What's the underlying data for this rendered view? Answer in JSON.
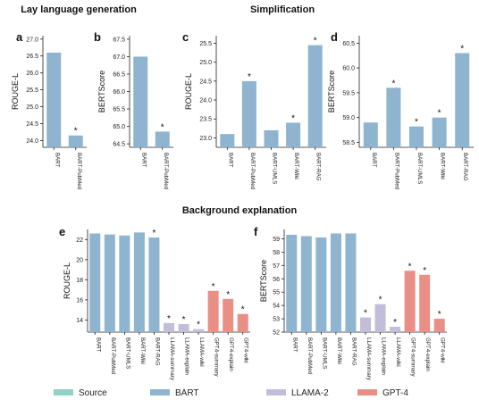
{
  "sections": {
    "lay": "Lay language generation",
    "simp": "Simplification",
    "bg": "Background explanation"
  },
  "colors": {
    "Source": "#8fd3c4",
    "BART": "#8fb4cf",
    "LLAMA-2": "#c2bdd9",
    "GPT-4": "#ea8f86"
  },
  "legend": [
    {
      "label": "Source",
      "color_key": "Source"
    },
    {
      "label": "BART",
      "color_key": "BART"
    },
    {
      "label": "LLAMA-2",
      "color_key": "LLAMA-2"
    },
    {
      "label": "GPT-4",
      "color_key": "GPT-4"
    }
  ],
  "chart_data": [
    {
      "panel": "a",
      "type": "bar",
      "ylabel": "ROUGE-L",
      "categories": [
        "BART",
        "BART-PubMed"
      ],
      "values": [
        26.6,
        24.15
      ],
      "star": [
        false,
        true
      ],
      "group": [
        "BART",
        "BART"
      ],
      "ylim": [
        23.8,
        27.1
      ],
      "yticks": [
        "24.0",
        "24.5",
        "25.0",
        "25.5",
        "26.0",
        "26.5",
        "27.0"
      ]
    },
    {
      "panel": "b",
      "type": "bar",
      "ylabel": "BERTScore",
      "categories": [
        "BART",
        "BART-PubMed"
      ],
      "values": [
        67.0,
        64.85
      ],
      "star": [
        false,
        true
      ],
      "group": [
        "BART",
        "BART"
      ],
      "ylim": [
        64.4,
        67.6
      ],
      "yticks": [
        "64.5",
        "65.0",
        "65.5",
        "66.0",
        "66.5",
        "67.0",
        "67.5"
      ]
    },
    {
      "panel": "c",
      "type": "bar",
      "ylabel": "ROUGE-L",
      "categories": [
        "BART",
        "BART-PubMed",
        "BART-UMLS",
        "BART-Wiki",
        "BART-RAG"
      ],
      "values": [
        23.1,
        24.5,
        23.2,
        23.4,
        25.45
      ],
      "star": [
        false,
        true,
        false,
        true,
        true
      ],
      "group": [
        "BART",
        "BART",
        "BART",
        "BART",
        "BART"
      ],
      "ylim": [
        22.75,
        25.7
      ],
      "yticks": [
        "23.0",
        "23.5",
        "24.0",
        "24.5",
        "25.0",
        "25.5"
      ]
    },
    {
      "panel": "d",
      "type": "bar",
      "ylabel": "BERTScore",
      "categories": [
        "BART",
        "BART-PubMed",
        "BART-UMLS",
        "BART-Wiki",
        "BART-RAG"
      ],
      "values": [
        58.9,
        59.6,
        58.82,
        59.0,
        60.3
      ],
      "star": [
        false,
        true,
        true,
        true,
        true
      ],
      "group": [
        "BART",
        "BART",
        "BART",
        "BART",
        "BART"
      ],
      "ylim": [
        58.4,
        60.65
      ],
      "yticks": [
        "58.5",
        "59.0",
        "59.5",
        "60.0",
        "60.5"
      ]
    },
    {
      "panel": "e",
      "type": "bar",
      "ylabel": "ROUGE-L",
      "categories": [
        "BART",
        "BART-PubMed",
        "BART-UMLS",
        "BART-Wiki",
        "BART-RAG",
        "LLAMA-summary",
        "LLAMA-explain",
        "LLAMA-wiki",
        "GPT4-summary",
        "GPT4-explain",
        "GPT4-wiki"
      ],
      "values": [
        22.6,
        22.5,
        22.4,
        22.7,
        22.2,
        13.7,
        13.6,
        13.1,
        16.9,
        16.1,
        14.6
      ],
      "star": [
        false,
        false,
        false,
        false,
        true,
        true,
        true,
        true,
        true,
        true,
        true
      ],
      "group": [
        "BART",
        "BART",
        "BART",
        "BART",
        "BART",
        "LLAMA-2",
        "LLAMA-2",
        "LLAMA-2",
        "GPT-4",
        "GPT-4",
        "GPT-4"
      ],
      "ylim": [
        12.8,
        23.0
      ],
      "yticks": [
        "14",
        "16",
        "18",
        "20",
        "22"
      ]
    },
    {
      "panel": "f",
      "type": "bar",
      "ylabel": "BERTScore",
      "categories": [
        "BART",
        "BART-PubMed",
        "BART-UMLS",
        "BART-Wiki",
        "BART-RAG",
        "LLAMA-summary",
        "LLAMA-explain",
        "LLAMA-wiki",
        "GPT4-summary",
        "GPT4-explain",
        "GPT4-wiki"
      ],
      "values": [
        59.3,
        59.2,
        59.1,
        59.4,
        59.4,
        53.1,
        54.1,
        52.4,
        56.6,
        56.3,
        53.0
      ],
      "star": [
        false,
        false,
        false,
        false,
        false,
        true,
        true,
        true,
        true,
        true,
        true
      ],
      "group": [
        "BART",
        "BART",
        "BART",
        "BART",
        "BART",
        "LLAMA-2",
        "LLAMA-2",
        "LLAMA-2",
        "GPT-4",
        "GPT-4",
        "GPT-4"
      ],
      "ylim": [
        52.0,
        59.7
      ],
      "yticks": [
        "52",
        "53",
        "54",
        "55",
        "56",
        "57",
        "58",
        "59"
      ]
    }
  ]
}
